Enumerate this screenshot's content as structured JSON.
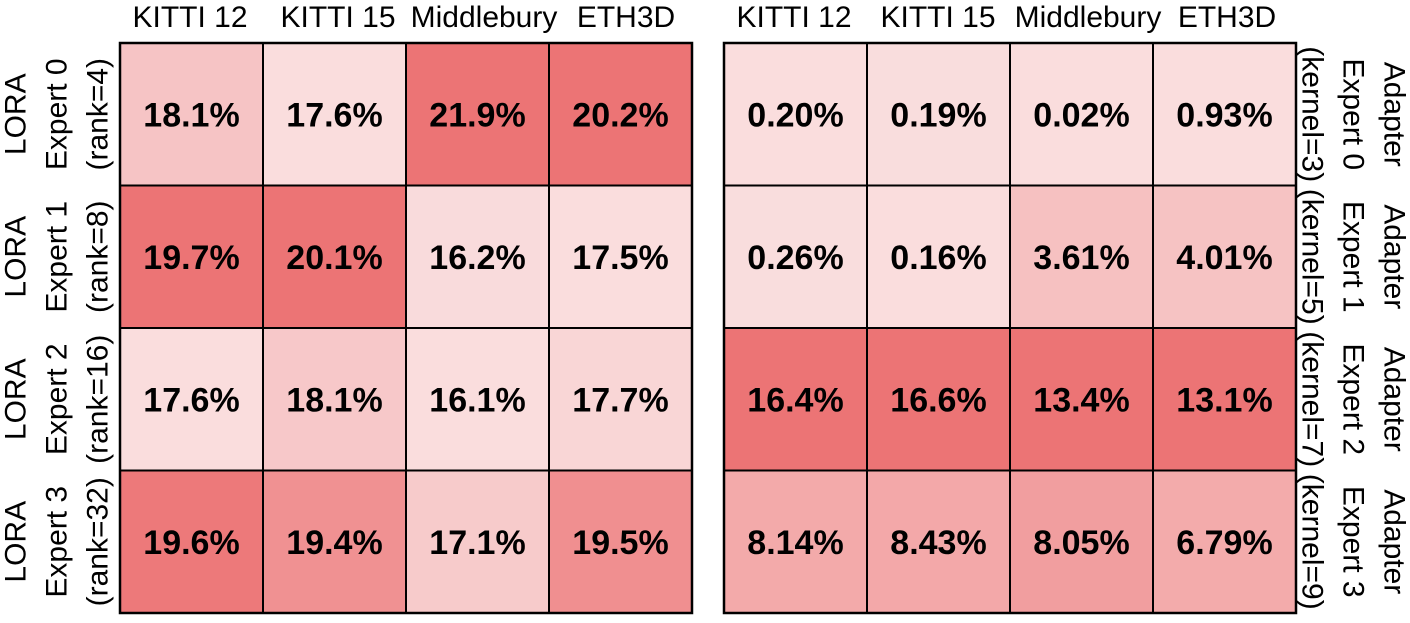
{
  "chart_data": [
    {
      "type": "heatmap",
      "title": "",
      "columns": [
        "KITTI 12",
        "KITTI 15",
        "Middlebury",
        "ETH3D"
      ],
      "rows": [
        [
          "LORA",
          "Expert 0",
          "(rank=4)"
        ],
        [
          "LORA",
          "Expert 1",
          "(rank=8)"
        ],
        [
          "LORA",
          "Expert 2",
          "(rank=16)"
        ],
        [
          "LORA",
          "Expert 3",
          "(rank=32)"
        ]
      ],
      "cell_labels": [
        [
          "18.1%",
          "17.6%",
          "21.9%",
          "20.2%"
        ],
        [
          "19.7%",
          "20.1%",
          "16.2%",
          "17.5%"
        ],
        [
          "17.6%",
          "18.1%",
          "16.1%",
          "17.7%"
        ],
        [
          "19.6%",
          "19.4%",
          "17.1%",
          "19.5%"
        ]
      ],
      "values": [
        [
          18.1,
          17.6,
          21.9,
          20.2
        ],
        [
          19.7,
          20.1,
          16.2,
          17.5
        ],
        [
          17.6,
          18.1,
          16.1,
          17.7
        ],
        [
          19.6,
          19.4,
          17.1,
          19.5
        ]
      ],
      "row_label_side": "left",
      "colormap": {
        "low": "#fbe9e9",
        "high": "#ec7475"
      }
    },
    {
      "type": "heatmap",
      "title": "",
      "columns": [
        "KITTI 12",
        "KITTI 15",
        "Middlebury",
        "ETH3D"
      ],
      "rows": [
        [
          "Adapter",
          "Expert 0",
          "(kernel=3)"
        ],
        [
          "Adapter",
          "Expert 1",
          "(kernel=5)"
        ],
        [
          "Adapter",
          "Expert 2",
          "(kernel=7)"
        ],
        [
          "Adapter",
          "Expert 3",
          "(kernel=9)"
        ]
      ],
      "cell_labels": [
        [
          "0.20%",
          "0.19%",
          "0.02%",
          "0.93%"
        ],
        [
          "0.26%",
          "0.16%",
          "3.61%",
          "4.01%"
        ],
        [
          "16.4%",
          "16.6%",
          "13.4%",
          "13.1%"
        ],
        [
          "8.14%",
          "8.43%",
          "8.05%",
          "6.79%"
        ]
      ],
      "values": [
        [
          0.2,
          0.19,
          0.02,
          0.93
        ],
        [
          0.26,
          0.16,
          3.61,
          4.01
        ],
        [
          16.4,
          16.6,
          13.4,
          13.1
        ],
        [
          8.14,
          8.43,
          8.05,
          6.79
        ]
      ],
      "row_label_side": "right",
      "colormap": {
        "low": "#fbe9e9",
        "high": "#ec7475"
      }
    }
  ]
}
